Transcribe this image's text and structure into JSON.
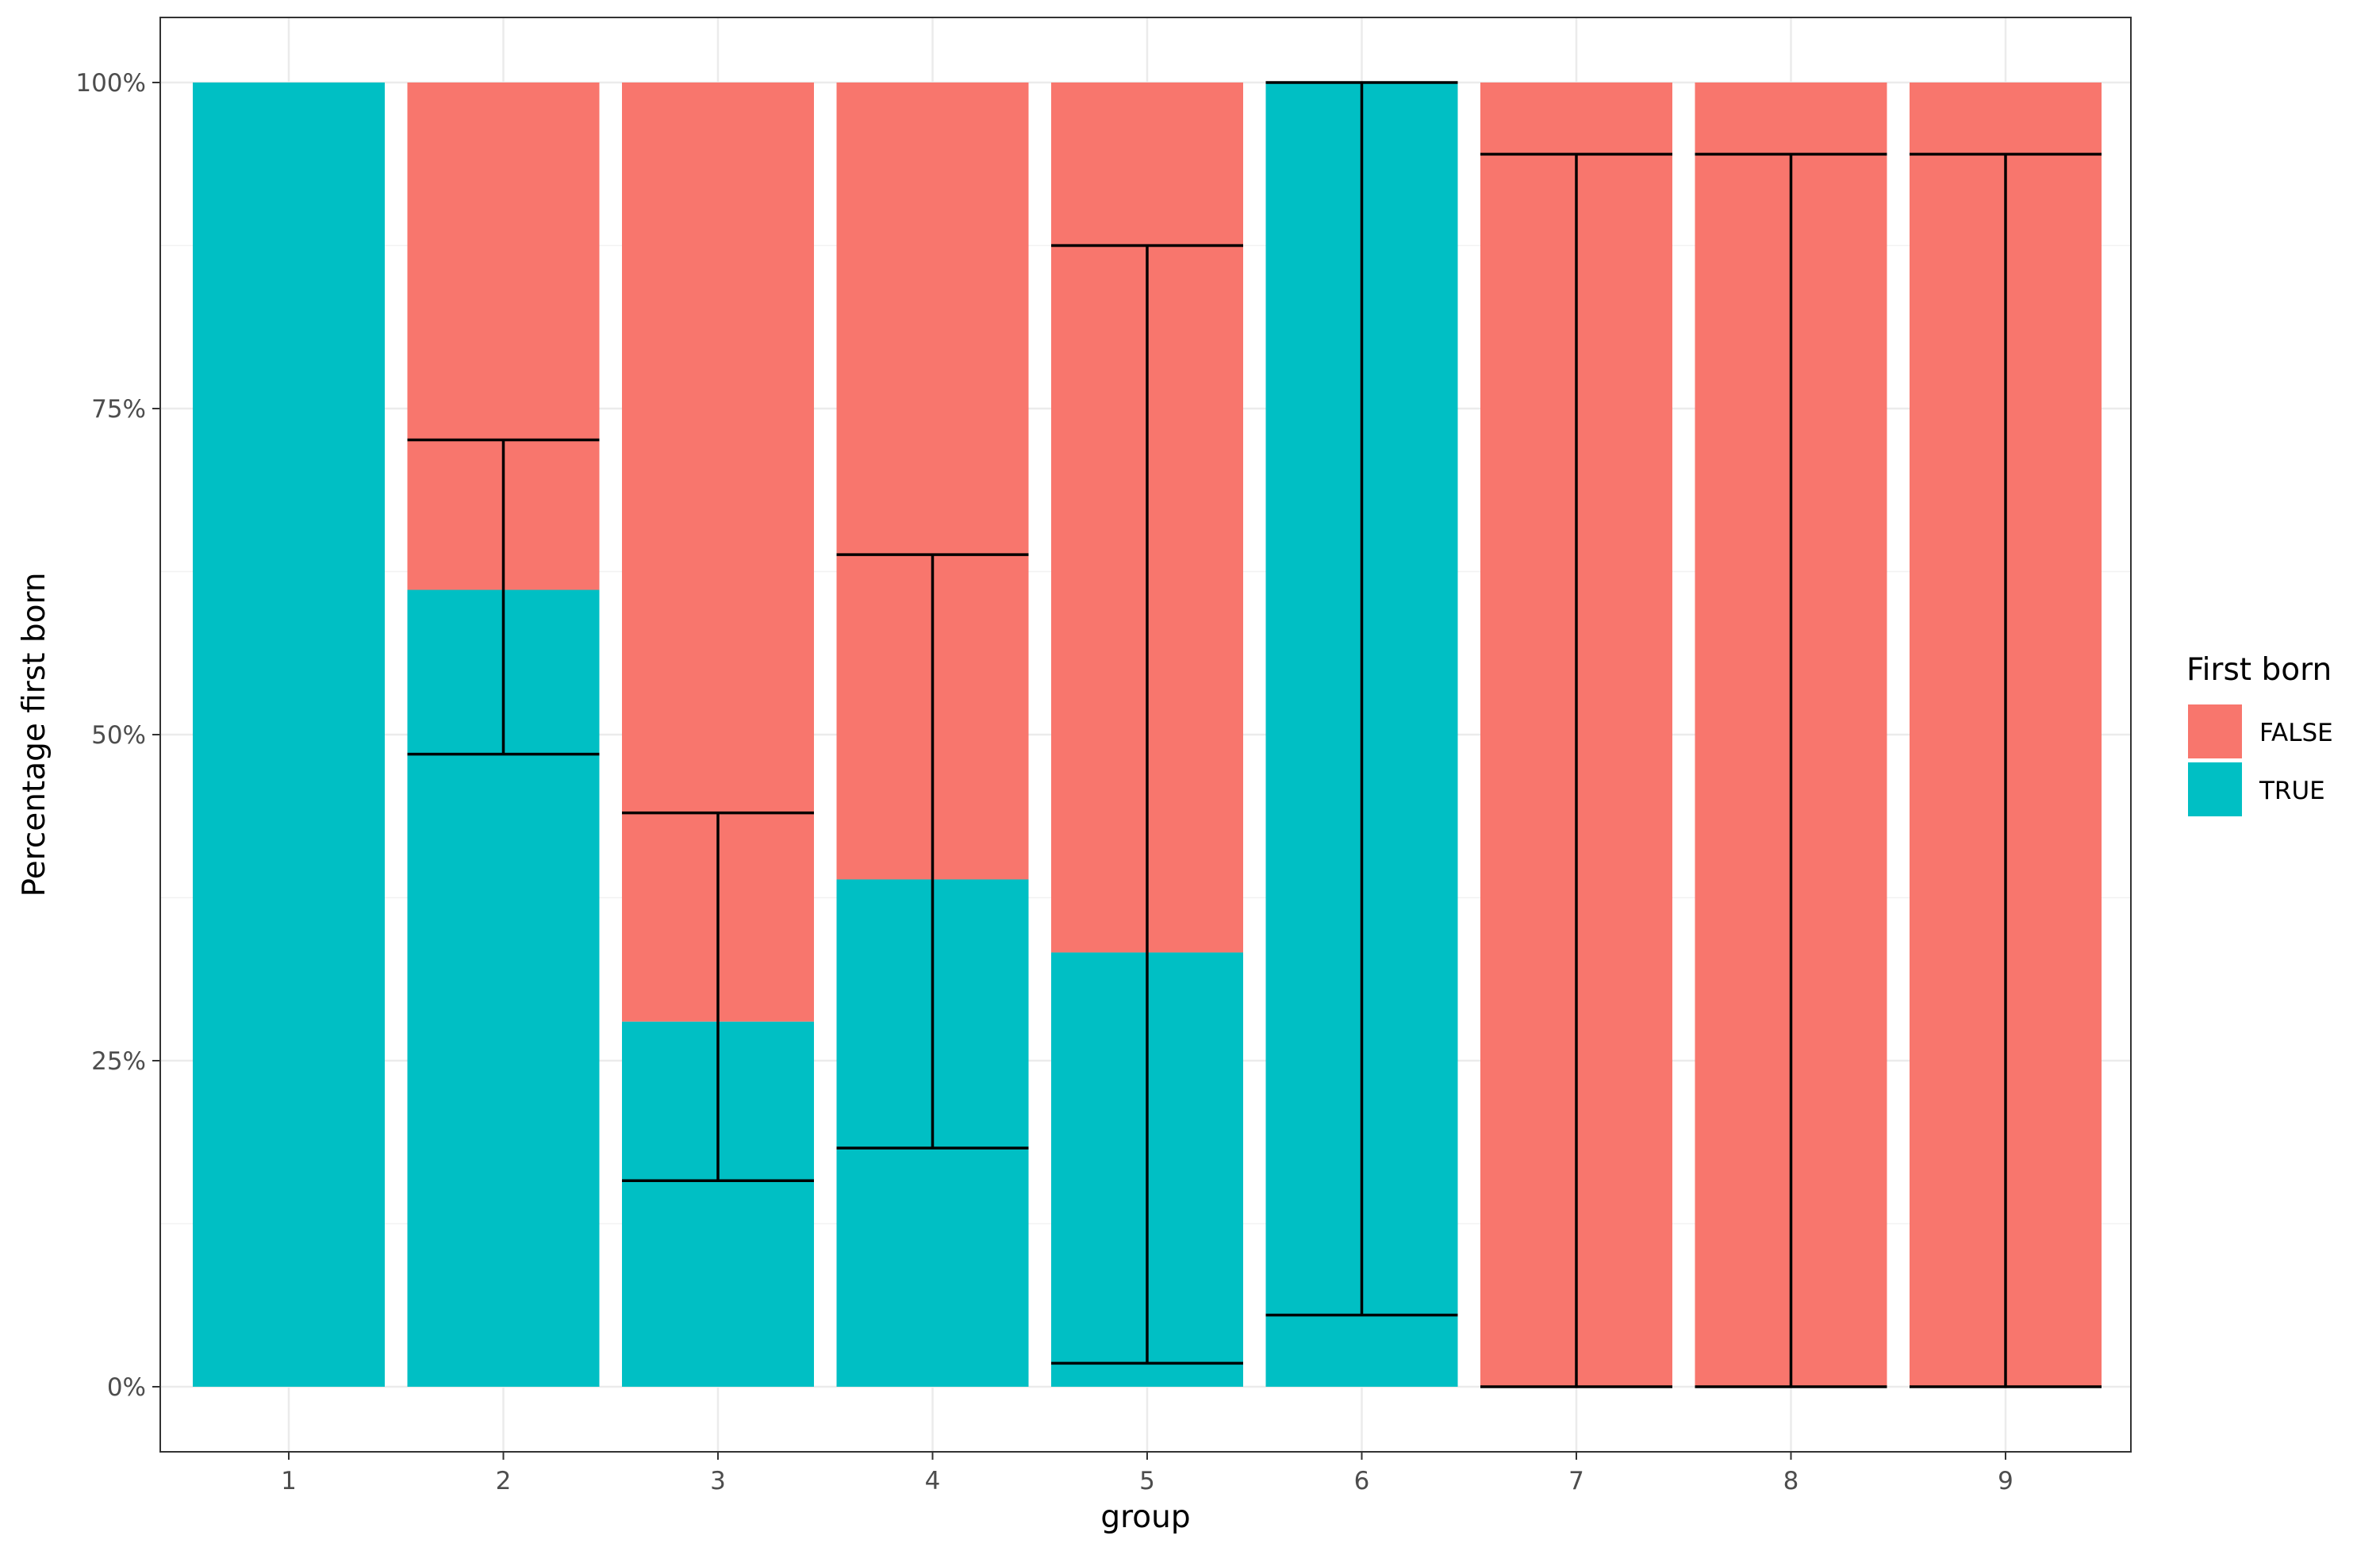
{
  "chart_data": {
    "type": "bar",
    "stacked": true,
    "categories": [
      "1",
      "2",
      "3",
      "4",
      "5",
      "6",
      "7",
      "8",
      "9"
    ],
    "xlabel": "group",
    "ylabel": "Percentage first born",
    "ylim": [
      0,
      1
    ],
    "yticks": [
      0,
      0.25,
      0.5,
      0.75,
      1
    ],
    "ytick_labels": [
      "0%",
      "25%",
      "50%",
      "75%",
      "100%"
    ],
    "grid": true,
    "legend": {
      "title": "First born",
      "position": "right"
    },
    "series": [
      {
        "name": "FALSE",
        "color": "#F8766D",
        "values": [
          0.0,
          0.389,
          0.72,
          0.611,
          0.667,
          0.0,
          1.0,
          1.0,
          1.0
        ]
      },
      {
        "name": "TRUE",
        "color": "#00BFC4",
        "values": [
          1.0,
          0.611,
          0.28,
          0.389,
          0.333,
          1.0,
          0.0,
          0.0,
          0.0
        ]
      }
    ],
    "error_bars": [
      null,
      {
        "low": 0.485,
        "high": 0.726
      },
      {
        "low": 0.158,
        "high": 0.44
      },
      {
        "low": 0.183,
        "high": 0.638
      },
      {
        "low": 0.018,
        "high": 0.875
      },
      {
        "low": 0.055,
        "high": 1.0
      },
      {
        "low": 0.0,
        "high": 0.945
      },
      {
        "low": 0.0,
        "high": 0.945
      },
      {
        "low": 0.0,
        "high": 0.945
      }
    ]
  }
}
